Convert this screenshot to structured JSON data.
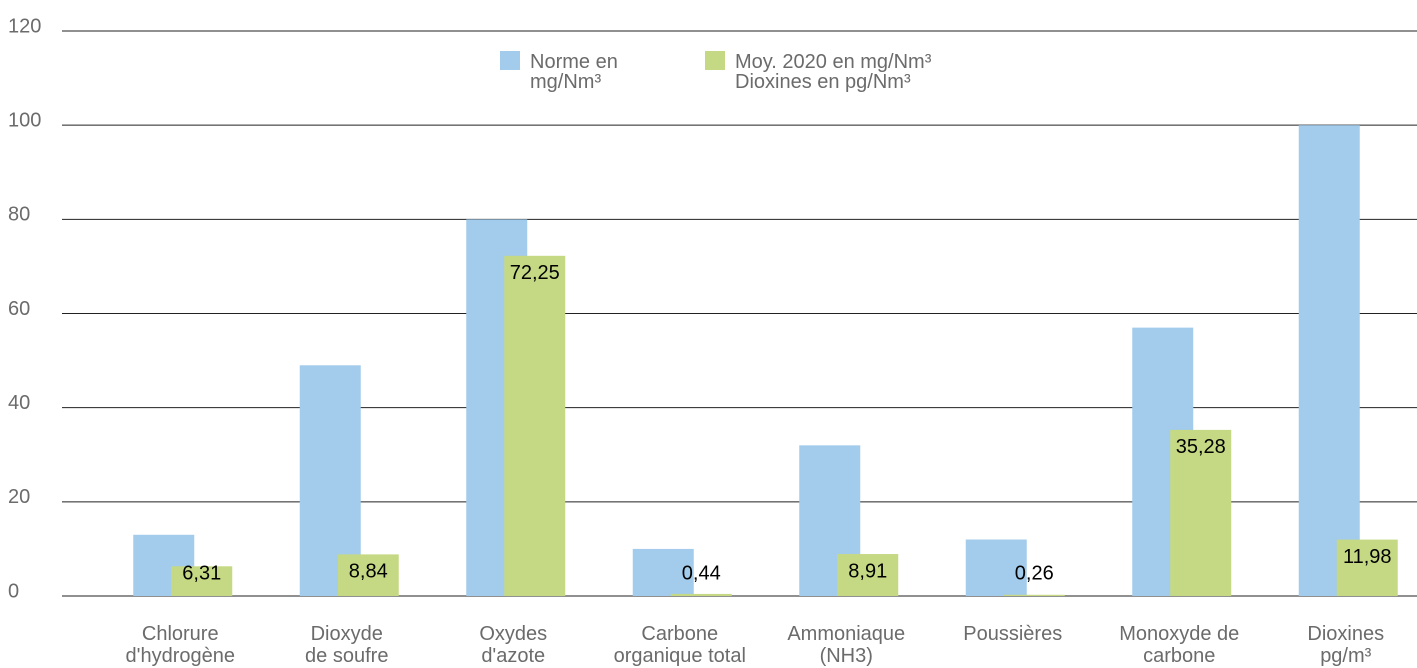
{
  "chart_data": {
    "type": "bar",
    "categories": [
      "Chlorure\nd'hydrogène",
      "Dioxyde\nde soufre",
      "Oxydes\nd'azote",
      "Carbone\norganique total",
      "Ammoniaque\n(NH3)",
      "Poussières",
      "Monoxyde de\ncarbone",
      "Dioxines\npg/m³"
    ],
    "series": [
      {
        "name": "Norme en\nmg/Nm³",
        "color": "#a3cbeb",
        "values": [
          13,
          49,
          80,
          10,
          32,
          12,
          57,
          100
        ]
      },
      {
        "name": "Moy. 2020 en mg/Nm³\nDioxines en pg/Nm³",
        "color": "#c5d984",
        "values": [
          6.31,
          8.84,
          72.25,
          0.44,
          8.91,
          0.26,
          35.28,
          11.98
        ],
        "value_labels": [
          "6,31",
          "8,84",
          "72,25",
          "0,44",
          "8,91",
          "0,26",
          "35,28",
          "11,98"
        ]
      }
    ],
    "ylim": [
      0,
      120
    ],
    "yticks": [
      0,
      20,
      40,
      60,
      80,
      100,
      120
    ],
    "grid": true,
    "legend": "top"
  }
}
